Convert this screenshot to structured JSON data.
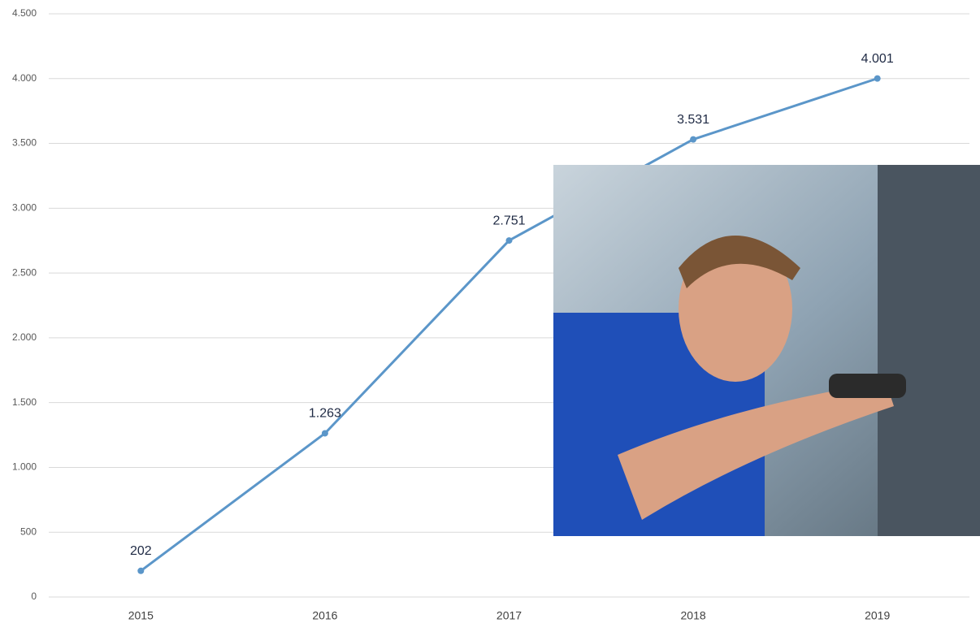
{
  "chart_data": {
    "type": "line",
    "categories": [
      "2015",
      "2016",
      "2017",
      "2018",
      "2019"
    ],
    "values": [
      202,
      1263,
      2751,
      3531,
      4001
    ],
    "value_labels": [
      "202",
      "1.263",
      "2.751",
      "3.531",
      "4.001"
    ],
    "color": "#5b96c9",
    "ylim": [
      0,
      4500
    ],
    "yticks": [
      0,
      500,
      {
        "value": 1000,
        "label": "1.000"
      },
      {
        "value": 1500,
        "label": "1.500"
      },
      {
        "value": 2000,
        "label": "2.000"
      },
      {
        "value": 2500,
        "label": "2.500"
      },
      {
        "value": 3000,
        "label": "3.000"
      },
      {
        "value": 3500,
        "label": "3.500"
      },
      {
        "value": 4000,
        "label": "4.000"
      },
      {
        "value": 4500,
        "label": "4.500"
      }
    ],
    "grid": true
  }
}
